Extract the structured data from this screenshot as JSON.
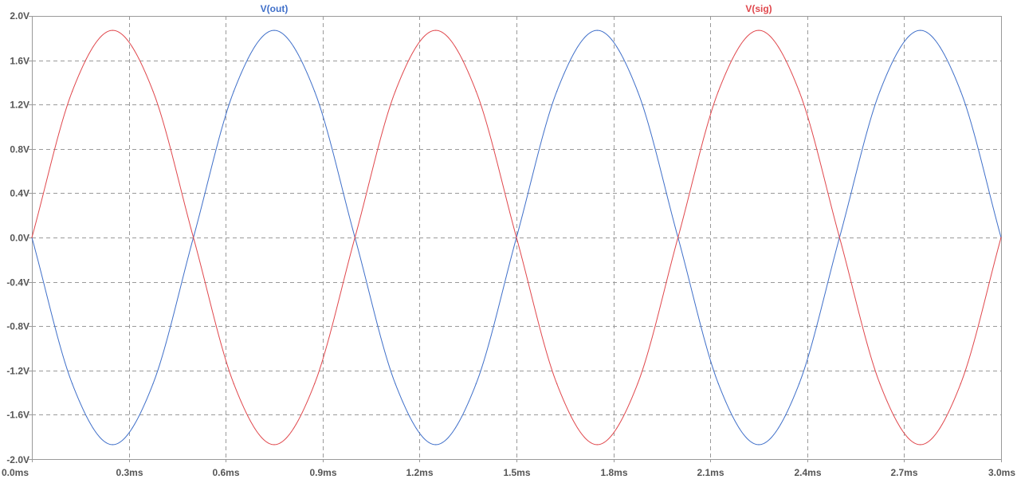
{
  "chart_data": {
    "type": "line",
    "title": "",
    "xlabel": "",
    "ylabel": "",
    "xlim": [
      0.0,
      3.0
    ],
    "ylim": [
      -2.0,
      2.0
    ],
    "grid": true,
    "legend_placement": "top",
    "x_unit": "ms",
    "y_unit": "V",
    "x_ticks": [
      "0.0ms",
      "0.3ms",
      "0.6ms",
      "0.9ms",
      "1.2ms",
      "1.5ms",
      "1.8ms",
      "2.1ms",
      "2.4ms",
      "2.7ms",
      "3.0ms"
    ],
    "y_ticks": [
      "2.0V",
      "1.6V",
      "1.2V",
      "0.8V",
      "0.4V",
      "0.0V",
      "-0.4V",
      "-0.8V",
      "-1.2V",
      "-1.6V",
      "-2.0V"
    ],
    "x_tick_values": [
      0.0,
      0.3,
      0.6,
      0.9,
      1.2,
      1.5,
      1.8,
      2.1,
      2.4,
      2.7,
      3.0
    ],
    "y_tick_values": [
      2.0,
      1.6,
      1.2,
      0.8,
      0.4,
      0.0,
      -0.4,
      -0.8,
      -1.2,
      -1.6,
      -2.0
    ],
    "series": [
      {
        "name": "V(out)",
        "color": "#3f6fc9",
        "x": [
          0.0,
          0.125,
          0.25,
          0.375,
          0.5,
          0.625,
          0.75,
          0.875,
          1.0,
          1.125,
          1.25,
          1.375,
          1.5,
          1.625,
          1.75,
          1.875,
          2.0,
          2.125,
          2.25,
          2.375,
          2.5,
          2.625,
          2.75,
          2.875,
          3.0
        ],
        "y": [
          0.0,
          -1.32,
          -1.87,
          -1.32,
          0.0,
          1.32,
          1.87,
          1.32,
          0.0,
          -1.32,
          -1.87,
          -1.32,
          0.0,
          1.32,
          1.87,
          1.32,
          0.0,
          -1.32,
          -1.87,
          -1.32,
          0.0,
          1.32,
          1.87,
          1.32,
          0.0
        ]
      },
      {
        "name": "V(sig)",
        "color": "#e0474c",
        "x": [
          0.0,
          0.125,
          0.25,
          0.375,
          0.5,
          0.625,
          0.75,
          0.875,
          1.0,
          1.125,
          1.25,
          1.375,
          1.5,
          1.625,
          1.75,
          1.875,
          2.0,
          2.125,
          2.25,
          2.375,
          2.5,
          2.625,
          2.75,
          2.875,
          3.0
        ],
        "y": [
          0.0,
          1.32,
          1.87,
          1.32,
          0.0,
          -1.32,
          -1.87,
          -1.32,
          0.0,
          1.32,
          1.87,
          1.32,
          0.0,
          -1.32,
          -1.87,
          -1.32,
          0.0,
          1.32,
          1.87,
          1.32,
          0.0,
          -1.32,
          -1.87,
          -1.32,
          0.0
        ]
      }
    ]
  }
}
